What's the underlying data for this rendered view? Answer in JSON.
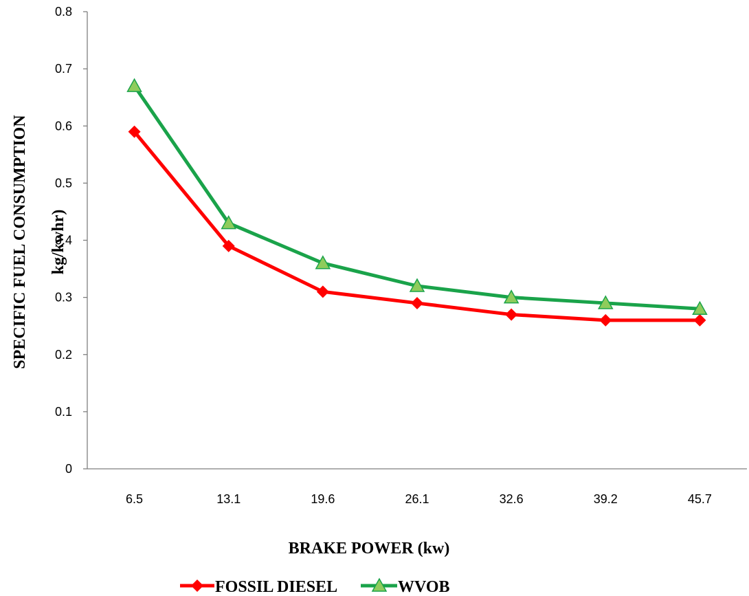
{
  "chart_data": {
    "type": "line",
    "title": "",
    "xlabel": "BRAKE POWER (kw)",
    "ylabel_line1": "SPECIFIC FUEL CONSUMPTION",
    "ylabel_line2": "kg/kwhr)",
    "categories": [
      "6.5",
      "13.1",
      "19.6",
      "26.1",
      "32.6",
      "39.2",
      "45.7"
    ],
    "ylim": [
      0,
      0.8
    ],
    "yticks": [
      "0",
      "0.1",
      "0.2",
      "0.3",
      "0.4",
      "0.5",
      "0.6",
      "0.7",
      "0.8"
    ],
    "grid": false,
    "legend_position": "bottom",
    "series": [
      {
        "name": "FOSSIL DIESEL",
        "marker": "diamond",
        "color": "#ff0000",
        "values": [
          0.59,
          0.39,
          0.31,
          0.29,
          0.27,
          0.26,
          0.26
        ]
      },
      {
        "name": "WVOB",
        "marker": "triangle",
        "color": "#1aa34a",
        "marker_fill": "#8fcc5c",
        "values": [
          0.67,
          0.43,
          0.36,
          0.32,
          0.3,
          0.29,
          0.28
        ]
      }
    ]
  }
}
